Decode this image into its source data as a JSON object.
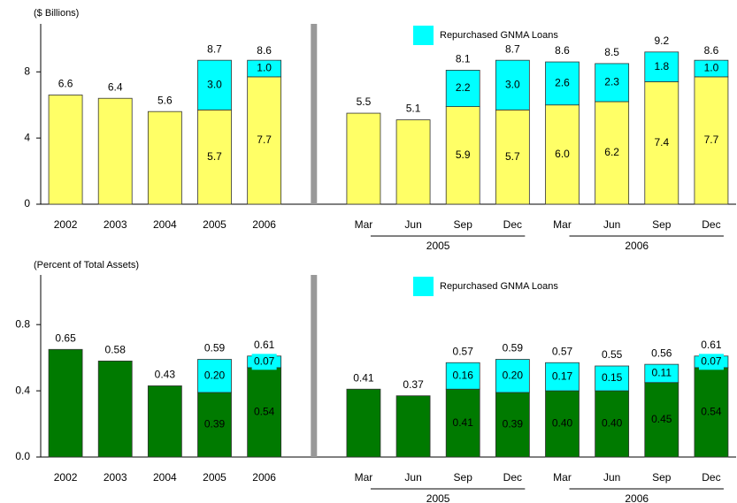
{
  "chart_data": [
    {
      "type": "bar",
      "stacked": true,
      "ylabel": "($ Billions)",
      "categories": [
        "2002",
        "2003",
        "2004",
        "2005",
        "2006",
        null,
        "Mar",
        "Jun",
        "Sep",
        "Dec",
        "Mar",
        "Jun",
        "Sep",
        "Dec"
      ],
      "groups": [
        "2005",
        "2006"
      ],
      "series": [
        {
          "color": "#ffff66",
          "values": [
            6.6,
            6.4,
            5.6,
            5.7,
            7.7,
            null,
            5.5,
            5.1,
            5.9,
            5.7,
            6.0,
            6.2,
            7.4,
            7.7
          ],
          "value_labels": [
            null,
            null,
            null,
            "5.7",
            "7.7",
            null,
            null,
            null,
            "5.9",
            "5.7",
            "6.0",
            "6.2",
            "7.4",
            "7.7"
          ]
        },
        {
          "name": "Repurchased GNMA Loans",
          "color": "#00ffff",
          "values": [
            null,
            null,
            null,
            3.0,
            1.0,
            null,
            null,
            null,
            2.2,
            3.0,
            2.6,
            2.3,
            1.8,
            1.0
          ],
          "value_labels": [
            null,
            null,
            null,
            "3.0",
            "1.0",
            null,
            null,
            null,
            "2.2",
            "3.0",
            "2.6",
            "2.3",
            "1.8",
            "1.0"
          ]
        }
      ],
      "totals": [
        6.6,
        6.4,
        5.6,
        8.7,
        8.6,
        null,
        5.5,
        5.1,
        8.1,
        8.7,
        8.6,
        8.5,
        9.2,
        8.6
      ],
      "ylim": [
        0,
        10.9
      ],
      "yticks": [
        0,
        4,
        8
      ],
      "legend": "top"
    },
    {
      "type": "bar",
      "stacked": true,
      "ylabel": "(Percent of Total Assets)",
      "categories": [
        "2002",
        "2003",
        "2004",
        "2005",
        "2006",
        null,
        "Mar",
        "Jun",
        "Sep",
        "Dec",
        "Mar",
        "Jun",
        "Sep",
        "Dec"
      ],
      "groups": [
        "2005",
        "2006"
      ],
      "series": [
        {
          "color": "#007a00",
          "values": [
            0.65,
            0.58,
            0.43,
            0.39,
            0.54,
            null,
            0.41,
            0.37,
            0.41,
            0.39,
            0.4,
            0.4,
            0.45,
            0.54
          ],
          "value_labels": [
            null,
            null,
            null,
            "0.39",
            "0.54",
            null,
            null,
            null,
            "0.41",
            "0.39",
            "0.40",
            "0.40",
            "0.45",
            "0.54"
          ]
        },
        {
          "name": "Repurchased GNMA Loans",
          "color": "#00ffff",
          "values": [
            null,
            null,
            null,
            0.2,
            0.07,
            null,
            null,
            null,
            0.16,
            0.2,
            0.17,
            0.15,
            0.11,
            0.07
          ],
          "value_labels": [
            null,
            null,
            null,
            "0.20",
            "0.07",
            null,
            null,
            null,
            "0.16",
            "0.20",
            "0.17",
            "0.15",
            "0.11",
            "0.07"
          ]
        }
      ],
      "totals": [
        0.65,
        0.58,
        0.43,
        0.59,
        0.61,
        null,
        0.41,
        0.37,
        0.57,
        0.59,
        0.57,
        0.55,
        0.56,
        0.61
      ],
      "ylim": [
        0,
        1.1
      ],
      "yticks": [
        {
          "value": 0,
          "label": "0.0"
        },
        0.4,
        0.8
      ],
      "legend": "top"
    }
  ]
}
